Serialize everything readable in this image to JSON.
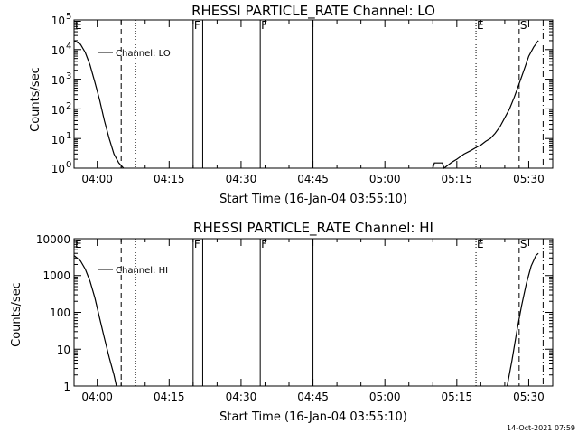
{
  "panels": [
    {
      "title": "RHESSI PARTICLE_RATE Channel: LO",
      "ylabel": "Counts/sec",
      "xlabel": "Start Time (16-Jan-04 03:55:10)",
      "legend": "Channel: LO",
      "ytick_style": "exponent",
      "ytick_labels": [
        "10",
        "10",
        "10",
        "10",
        "10",
        "10"
      ],
      "ytick_exponents": [
        "0",
        "1",
        "2",
        "3",
        "4",
        "5"
      ]
    },
    {
      "title": "RHESSI PARTICLE_RATE Channel: HI",
      "ylabel": "Counts/sec",
      "xlabel": "Start Time (16-Jan-04 03:55:10)",
      "legend": "Channel: HI",
      "ytick_style": "plain",
      "ytick_labels": [
        "1",
        "10",
        "100",
        "1000",
        "10000"
      ],
      "ytick_exponents": []
    }
  ],
  "xtick_labels": [
    "04:00",
    "04:15",
    "04:30",
    "04:45",
    "05:00",
    "05:15",
    "05:30"
  ],
  "markers": {
    "letters": [
      "E",
      "F",
      "F",
      "E",
      "S"
    ]
  },
  "timestamp": "14-Oct-2021 07:59",
  "chart_data": [
    {
      "type": "line",
      "title": "RHESSI PARTICLE_RATE Channel: LO",
      "xlabel": "Start Time (16-Jan-04 03:55:10)",
      "ylabel": "Counts/sec",
      "yscale": "log",
      "xlim": [
        "03:55:10",
        "05:35:00"
      ],
      "ylim": [
        1,
        100000
      ],
      "xticks": [
        "04:00",
        "04:15",
        "04:30",
        "04:45",
        "05:00",
        "05:15",
        "05:30"
      ],
      "series": [
        {
          "name": "Channel: LO",
          "segments": [
            {
              "x": [
                "03:55:10",
                "03:56:30",
                "03:57:30",
                "03:58:30",
                "03:59:30",
                "04:00:30",
                "04:01:30",
                "04:02:30",
                "04:03:30",
                "04:04:30",
                "04:05:30"
              ],
              "y": [
                20000,
                15000,
                8000,
                3000,
                800,
                200,
                40,
                10,
                3,
                1.5,
                1
              ]
            },
            {
              "x": [
                "05:10:00",
                "05:10:20",
                "05:12:00",
                "05:12:20",
                "05:14:00",
                "05:15:00",
                "05:16:30",
                "05:18:00",
                "05:19:00",
                "05:20:00",
                "05:21:00",
                "05:22:00",
                "05:23:00",
                "05:24:00",
                "05:25:00",
                "05:26:00",
                "05:27:00",
                "05:28:00",
                "05:29:00",
                "05:30:00",
                "05:31:00",
                "05:32:00"
              ],
              "y": [
                1,
                1.5,
                1.5,
                1,
                1.6,
                2,
                3,
                4,
                5,
                6,
                8,
                10,
                15,
                25,
                50,
                100,
                250,
                700,
                2000,
                6000,
                12000,
                20000
              ]
            }
          ]
        }
      ],
      "vertical_markers": [
        {
          "label": "E",
          "time": "03:55:10",
          "style": "dotted"
        },
        {
          "label": "",
          "time": "04:05:00",
          "style": "dashed"
        },
        {
          "label": "",
          "time": "04:08:00",
          "style": "dotted"
        },
        {
          "label": "F",
          "time": "04:20:00",
          "style": "solid"
        },
        {
          "label": "",
          "time": "04:22:00",
          "style": "solid"
        },
        {
          "label": "F",
          "time": "04:34:00",
          "style": "solid"
        },
        {
          "label": "",
          "time": "04:45:00",
          "style": "solid"
        },
        {
          "label": "E",
          "time": "05:19:00",
          "style": "dotted"
        },
        {
          "label": "S",
          "time": "05:28:00",
          "style": "dashed"
        },
        {
          "label": "",
          "time": "05:33:00",
          "style": "dashdot"
        }
      ]
    },
    {
      "type": "line",
      "title": "RHESSI PARTICLE_RATE Channel: HI",
      "xlabel": "Start Time (16-Jan-04 03:55:10)",
      "ylabel": "Counts/sec",
      "yscale": "log",
      "xlim": [
        "03:55:10",
        "05:35:00"
      ],
      "ylim": [
        1,
        10000
      ],
      "xticks": [
        "04:00",
        "04:15",
        "04:30",
        "04:45",
        "05:00",
        "05:15",
        "05:30"
      ],
      "series": [
        {
          "name": "Channel: HI",
          "segments": [
            {
              "x": [
                "03:55:10",
                "03:56:30",
                "03:57:30",
                "03:58:30",
                "03:59:30",
                "04:00:30",
                "04:01:30",
                "04:02:30",
                "04:03:30",
                "04:04:00"
              ],
              "y": [
                3500,
                2500,
                1500,
                700,
                250,
                70,
                20,
                6,
                2,
                1
              ]
            },
            {
              "x": [
                "05:25:30",
                "05:26:30",
                "05:27:30",
                "05:28:30",
                "05:29:30",
                "05:30:30",
                "05:31:30",
                "05:32:00"
              ],
              "y": [
                1,
                5,
                30,
                150,
                600,
                1800,
                3500,
                4000
              ]
            }
          ]
        }
      ],
      "vertical_markers": [
        {
          "label": "E",
          "time": "03:55:10",
          "style": "dotted"
        },
        {
          "label": "",
          "time": "04:05:00",
          "style": "dashed"
        },
        {
          "label": "",
          "time": "04:08:00",
          "style": "dotted"
        },
        {
          "label": "F",
          "time": "04:20:00",
          "style": "solid"
        },
        {
          "label": "",
          "time": "04:22:00",
          "style": "solid"
        },
        {
          "label": "F",
          "time": "04:34:00",
          "style": "solid"
        },
        {
          "label": "",
          "time": "04:45:00",
          "style": "solid"
        },
        {
          "label": "E",
          "time": "05:19:00",
          "style": "dotted"
        },
        {
          "label": "S",
          "time": "05:28:00",
          "style": "dashed"
        },
        {
          "label": "",
          "time": "05:33:00",
          "style": "dashdot"
        }
      ]
    }
  ]
}
